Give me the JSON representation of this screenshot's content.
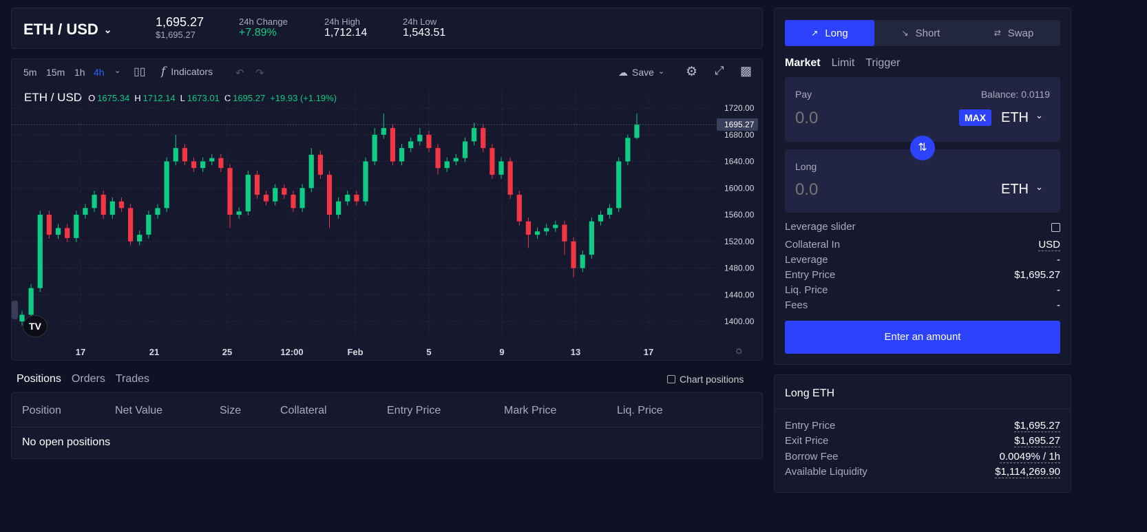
{
  "header": {
    "pair": "ETH / USD",
    "price": "1,695.27",
    "price_usd": "$1,695.27",
    "stats": [
      {
        "label": "24h Change",
        "value": "+7.89%"
      },
      {
        "label": "24h High",
        "value": "1,712.14"
      },
      {
        "label": "24h Low",
        "value": "1,543.51"
      }
    ]
  },
  "toolbar": {
    "timeframes": [
      "5m",
      "15m",
      "1h",
      "4h"
    ],
    "active": "4h",
    "indicators": "Indicators",
    "save": "Save"
  },
  "legend": {
    "symbol": "ETH / USD",
    "o_label": "O",
    "o": "1675.34",
    "h_label": "H",
    "h": "1712.14",
    "l_label": "L",
    "l": "1673.01",
    "c_label": "C",
    "c": "1695.27",
    "change": "+19.93 (+1.19%)"
  },
  "colors": {
    "up": "#0ecc83",
    "down": "#f23645",
    "accent": "#2d42fc",
    "bg": "#101124",
    "panel": "#16182e"
  },
  "chart_data": {
    "type": "candlestick",
    "ylim": [
      1400,
      1720
    ],
    "yticks": [
      "1720.00",
      "1680.00",
      "1640.00",
      "1600.00",
      "1560.00",
      "1520.00",
      "1480.00",
      "1440.00",
      "1400.00"
    ],
    "xticks": [
      "17",
      "21",
      "25",
      "12:00",
      "Feb",
      "5",
      "9",
      "13",
      "17"
    ],
    "current_price": "1695.27",
    "candles": [
      [
        1400,
        1416,
        1394,
        1410
      ],
      [
        1410,
        1456,
        1404,
        1450
      ],
      [
        1450,
        1566,
        1444,
        1560
      ],
      [
        1560,
        1566,
        1524,
        1530
      ],
      [
        1530,
        1546,
        1524,
        1540
      ],
      [
        1540,
        1546,
        1519,
        1525
      ],
      [
        1525,
        1566,
        1519,
        1560
      ],
      [
        1560,
        1576,
        1554,
        1570
      ],
      [
        1570,
        1596,
        1564,
        1590
      ],
      [
        1590,
        1596,
        1554,
        1560
      ],
      [
        1560,
        1586,
        1554,
        1580
      ],
      [
        1580,
        1586,
        1564,
        1570
      ],
      [
        1570,
        1576,
        1514,
        1520
      ],
      [
        1520,
        1536,
        1514,
        1530
      ],
      [
        1530,
        1566,
        1524,
        1560
      ],
      [
        1560,
        1576,
        1554,
        1570
      ],
      [
        1570,
        1646,
        1564,
        1640
      ],
      [
        1640,
        1680,
        1634,
        1660
      ],
      [
        1660,
        1666,
        1634,
        1640
      ],
      [
        1640,
        1646,
        1624,
        1630
      ],
      [
        1630,
        1646,
        1624,
        1640
      ],
      [
        1640,
        1651,
        1634,
        1645
      ],
      [
        1645,
        1651,
        1624,
        1630
      ],
      [
        1630,
        1636,
        1540,
        1560
      ],
      [
        1560,
        1571,
        1554,
        1565
      ],
      [
        1565,
        1626,
        1559,
        1620
      ],
      [
        1620,
        1626,
        1584,
        1590
      ],
      [
        1590,
        1596,
        1574,
        1580
      ],
      [
        1580,
        1606,
        1574,
        1600
      ],
      [
        1600,
        1606,
        1584,
        1590
      ],
      [
        1590,
        1596,
        1564,
        1570
      ],
      [
        1570,
        1606,
        1564,
        1600
      ],
      [
        1600,
        1660,
        1594,
        1650
      ],
      [
        1650,
        1656,
        1614,
        1620
      ],
      [
        1620,
        1626,
        1540,
        1560
      ],
      [
        1560,
        1586,
        1554,
        1580
      ],
      [
        1580,
        1596,
        1574,
        1590
      ],
      [
        1590,
        1596,
        1574,
        1580
      ],
      [
        1580,
        1646,
        1574,
        1640
      ],
      [
        1640,
        1690,
        1634,
        1680
      ],
      [
        1680,
        1712,
        1674,
        1690
      ],
      [
        1690,
        1696,
        1634,
        1640
      ],
      [
        1640,
        1666,
        1634,
        1660
      ],
      [
        1660,
        1676,
        1654,
        1670
      ],
      [
        1670,
        1690,
        1664,
        1680
      ],
      [
        1680,
        1686,
        1654,
        1660
      ],
      [
        1660,
        1666,
        1620,
        1630
      ],
      [
        1630,
        1646,
        1624,
        1640
      ],
      [
        1640,
        1651,
        1634,
        1645
      ],
      [
        1645,
        1676,
        1639,
        1670
      ],
      [
        1670,
        1698,
        1664,
        1690
      ],
      [
        1690,
        1696,
        1654,
        1660
      ],
      [
        1660,
        1666,
        1614,
        1620
      ],
      [
        1620,
        1646,
        1614,
        1640
      ],
      [
        1640,
        1646,
        1584,
        1590
      ],
      [
        1590,
        1596,
        1544,
        1550
      ],
      [
        1550,
        1556,
        1510,
        1530
      ],
      [
        1530,
        1541,
        1524,
        1535
      ],
      [
        1535,
        1546,
        1529,
        1540
      ],
      [
        1540,
        1551,
        1534,
        1545
      ],
      [
        1545,
        1551,
        1500,
        1520
      ],
      [
        1520,
        1526,
        1466,
        1480
      ],
      [
        1480,
        1506,
        1474,
        1500
      ],
      [
        1500,
        1556,
        1494,
        1550
      ],
      [
        1550,
        1566,
        1544,
        1560
      ],
      [
        1560,
        1576,
        1554,
        1570
      ],
      [
        1570,
        1646,
        1564,
        1640
      ],
      [
        1640,
        1680,
        1634,
        1675.34
      ],
      [
        1675.34,
        1712.14,
        1673.01,
        1695.27
      ]
    ]
  },
  "trade": {
    "tabs": [
      "Long",
      "Short",
      "Swap"
    ],
    "order_types": [
      "Market",
      "Limit",
      "Trigger"
    ],
    "pay": {
      "label": "Pay",
      "balance": "Balance: 0.0119",
      "placeholder": "0.0",
      "max": "MAX",
      "token": "ETH"
    },
    "long": {
      "label": "Long",
      "placeholder": "0.0",
      "token": "ETH"
    },
    "leverage_slider": "Leverage slider",
    "rows": [
      {
        "k": "Collateral In",
        "v": "USD"
      },
      {
        "k": "Leverage",
        "v": "-"
      },
      {
        "k": "Entry Price",
        "v": "$1,695.27"
      },
      {
        "k": "Liq. Price",
        "v": "-"
      },
      {
        "k": "Fees",
        "v": "-"
      }
    ],
    "submit": "Enter an amount"
  },
  "info": {
    "title": "Long ETH",
    "rows": [
      {
        "k": "Entry Price",
        "v": "$1,695.27"
      },
      {
        "k": "Exit Price",
        "v": "$1,695.27"
      },
      {
        "k": "Borrow Fee",
        "v": "0.0049% / 1h"
      },
      {
        "k": "Available Liquidity",
        "v": "$1,114,269.90"
      }
    ]
  },
  "positions": {
    "tabs": [
      "Positions",
      "Orders",
      "Trades"
    ],
    "chart_positions": "Chart positions",
    "columns": [
      "Position",
      "Net Value",
      "Size",
      "Collateral",
      "Entry Price",
      "Mark Price",
      "Liq. Price"
    ],
    "empty": "No open positions"
  }
}
